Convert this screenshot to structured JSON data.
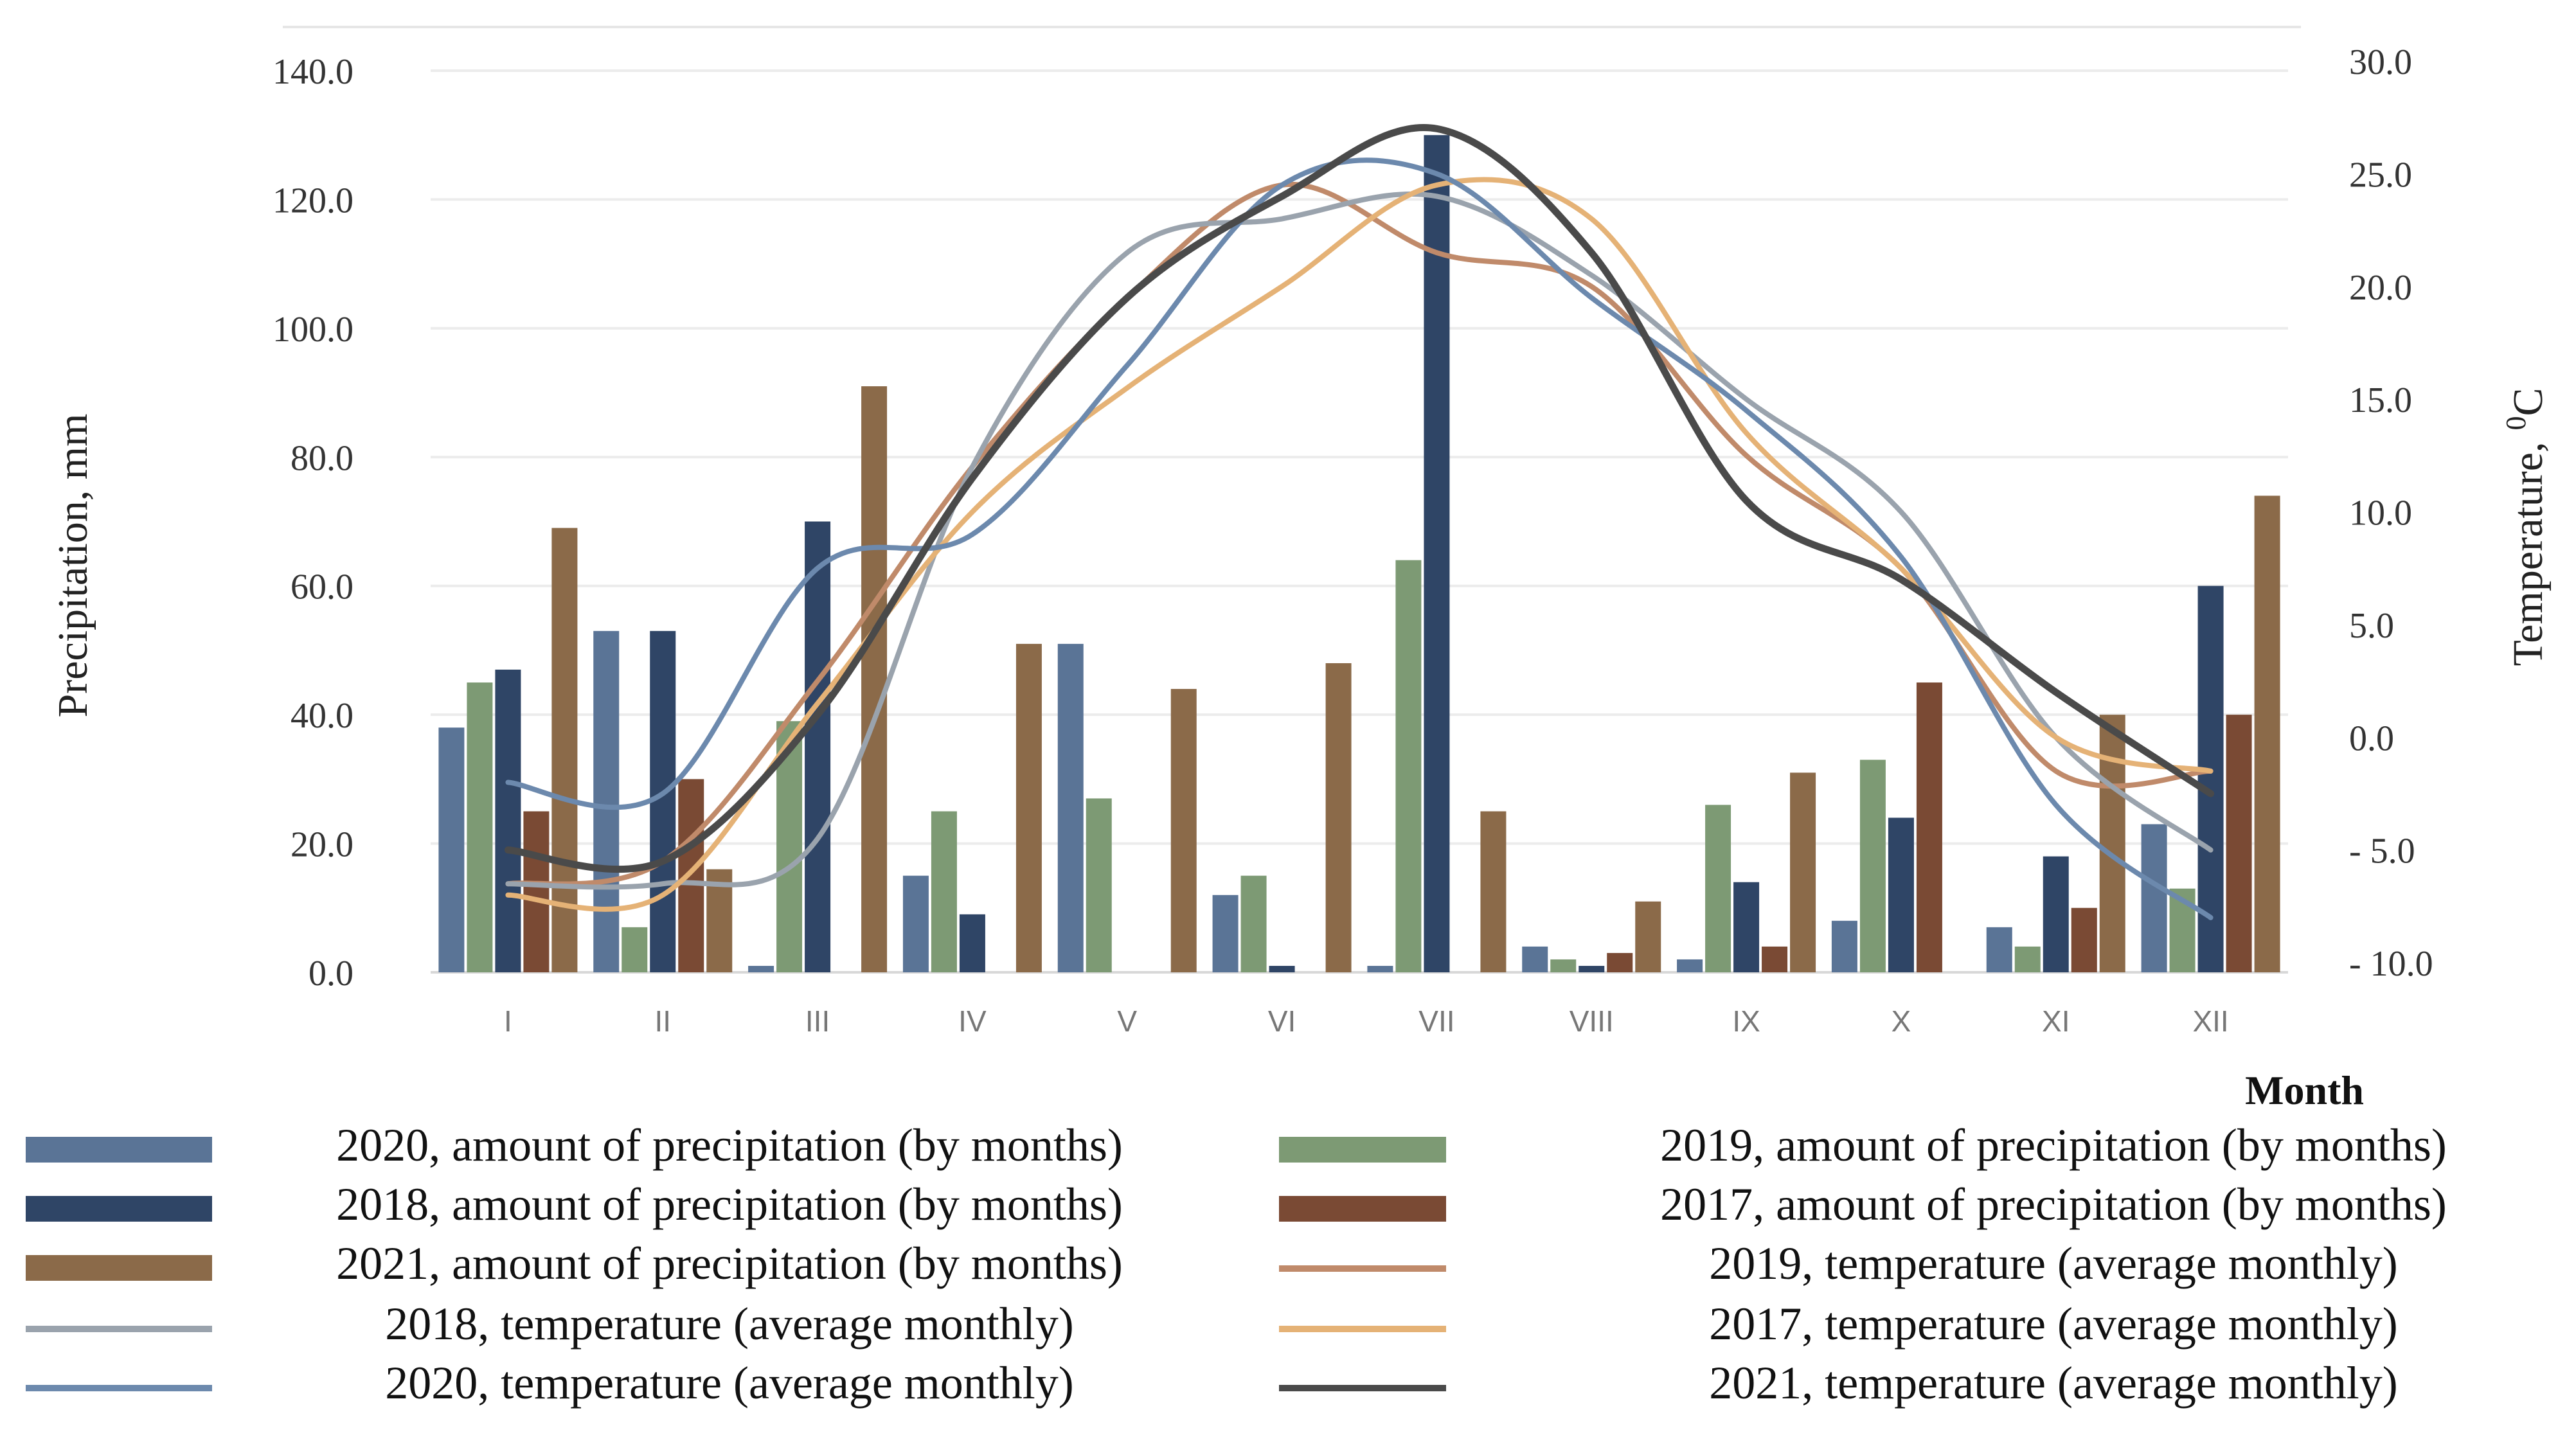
{
  "chart_data": {
    "type": "bar+line",
    "xlabel": "Month",
    "ylabel_left": "Precipitation, mm",
    "ylabel_right_prefix": "Temperature,",
    "ylabel_right_unit_sup": "0",
    "ylabel_right_unit": "C",
    "categories": [
      "I",
      "II",
      "III",
      "IV",
      "V",
      "VI",
      "VII",
      "VIII",
      "IX",
      "X",
      "XI",
      "XII"
    ],
    "ylim_left": [
      0,
      140
    ],
    "yticks_left": [
      "0.0",
      "20.0",
      "40.0",
      "60.0",
      "80.0",
      "100.0",
      "120.0",
      "140.0"
    ],
    "ylim_right": [
      -10,
      30
    ],
    "yticks_right": [
      "- 10.0",
      "- 5.0",
      "0.0",
      "5.0",
      "10.0",
      "15.0",
      "20.0",
      "25.0",
      "30.0"
    ],
    "bar_series": [
      {
        "name": "2020, amount of precipitation (by months)",
        "color": "#5a7496",
        "values": [
          38,
          53,
          1,
          15,
          51,
          12,
          1,
          4,
          2,
          8,
          7,
          23
        ]
      },
      {
        "name": "2019, amount of precipitation (by months)",
        "color": "#7d9a74",
        "values": [
          45,
          7,
          39,
          25,
          27,
          15,
          64,
          2,
          26,
          33,
          4,
          13
        ]
      },
      {
        "name": "2018, amount of precipitation (by months)",
        "color": "#2f4566",
        "values": [
          47,
          53,
          70,
          9,
          0,
          1,
          130,
          1,
          14,
          24,
          18,
          60
        ]
      },
      {
        "name": "2017, amount of precipitation (by months)",
        "color": "#7a4a34",
        "values": [
          25,
          30,
          0,
          0,
          0,
          0,
          0,
          3,
          4,
          45,
          10,
          40
        ]
      },
      {
        "name": "2021, amount of precipitation (by months)",
        "color": "#8b6a49",
        "values": [
          69,
          16,
          91,
          51,
          44,
          48,
          25,
          11,
          31,
          0,
          40,
          74
        ]
      }
    ],
    "line_series": [
      {
        "name": "2019, temperature (average monthly)",
        "color": "#c08a6a",
        "values": [
          -6.5,
          -5.5,
          2.5,
          12,
          19.5,
          24.5,
          21.5,
          20,
          12.5,
          7.5,
          -1.5,
          -1.5
        ]
      },
      {
        "name": "2018, temperature (average monthly)",
        "color": "#9aa3ad",
        "values": [
          -6.5,
          -6.5,
          -4.5,
          12,
          21.5,
          23,
          24,
          20.5,
          15,
          10,
          0,
          -5
        ]
      },
      {
        "name": "2017, temperature (average monthly)",
        "color": "#e5b276",
        "values": [
          -7,
          -7,
          1.5,
          10,
          15.5,
          20,
          24.5,
          23,
          13.5,
          7.5,
          0,
          -1.5
        ]
      },
      {
        "name": "2020, temperature (average monthly)",
        "color": "#6c89ad",
        "values": [
          -2,
          -2.5,
          7.5,
          9,
          16.5,
          24.5,
          25,
          19.5,
          14.5,
          8,
          -3,
          -8
        ]
      },
      {
        "name": "2021, temperature (average monthly)",
        "color": "#4a4a4a",
        "values": [
          -5,
          -5.5,
          1,
          11.5,
          19.5,
          24,
          27,
          21.5,
          10.5,
          7,
          2,
          -2.5
        ]
      }
    ],
    "legend": [
      {
        "label": "2020, amount of precipitation (by months)",
        "kind": "bar",
        "color": "#5a7496"
      },
      {
        "label": "2019, amount of precipitation (by months)",
        "kind": "bar",
        "color": "#7d9a74"
      },
      {
        "label": "2018, amount of precipitation (by months)",
        "kind": "bar",
        "color": "#2f4566"
      },
      {
        "label": "2017, amount of precipitation (by months)",
        "kind": "bar",
        "color": "#7a4a34"
      },
      {
        "label": "2021, amount of precipitation (by months)",
        "kind": "bar",
        "color": "#8b6a49"
      },
      {
        "label": "2019, temperature (average monthly)",
        "kind": "line",
        "color": "#c08a6a"
      },
      {
        "label": "2018, temperature (average monthly)",
        "kind": "line",
        "color": "#9aa3ad"
      },
      {
        "label": "2017, temperature (average monthly)",
        "kind": "line",
        "color": "#e5b276"
      },
      {
        "label": "2020, temperature (average monthly)",
        "kind": "line",
        "color": "#6c89ad"
      },
      {
        "label": "2021, temperature (average monthly)",
        "kind": "line",
        "color": "#4a4a4a"
      }
    ]
  }
}
